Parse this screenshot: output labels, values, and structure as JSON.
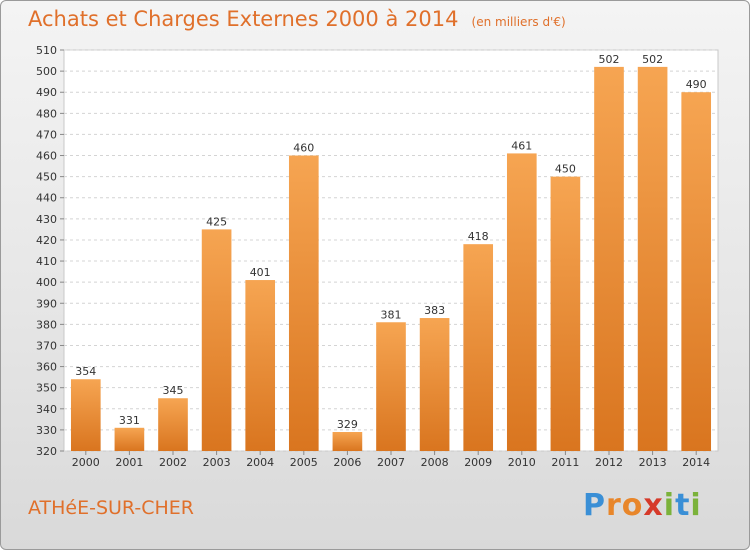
{
  "header": {
    "title": "Achats et Charges Externes 2000 à 2014",
    "unit": "(en milliers d'€)"
  },
  "footer": {
    "commune": "ATHéE-SUR-CHER",
    "brand_letters": [
      {
        "char": "P",
        "color": "#3a8fd6"
      },
      {
        "char": "r",
        "color": "#e8862a"
      },
      {
        "char": "o",
        "color": "#e8862a"
      },
      {
        "char": "x",
        "color": "#d63a2a"
      },
      {
        "char": "i",
        "color": "#7bb23a"
      },
      {
        "char": "t",
        "color": "#3a8fd6"
      },
      {
        "char": "i",
        "color": "#7bb23a"
      }
    ]
  },
  "colors": {
    "bar_light": "#f6a552",
    "bar_dark": "#d9751f",
    "accent": "#e0702b"
  },
  "chart_data": {
    "type": "bar",
    "title": "Achats et Charges Externes 2000 à 2014",
    "subtitle": "(en milliers d'€)",
    "categories": [
      "2000",
      "2001",
      "2002",
      "2003",
      "2004",
      "2005",
      "2006",
      "2007",
      "2008",
      "2009",
      "2010",
      "2011",
      "2012",
      "2013",
      "2014"
    ],
    "values": [
      354,
      331,
      345,
      425,
      401,
      460,
      329,
      381,
      383,
      418,
      461,
      450,
      502,
      502,
      490
    ],
    "ylim": [
      320,
      510
    ],
    "yticks": [
      320,
      330,
      340,
      350,
      360,
      370,
      380,
      390,
      400,
      410,
      420,
      430,
      440,
      450,
      460,
      470,
      480,
      490,
      500,
      510
    ],
    "grid": true,
    "data_labels": true
  }
}
